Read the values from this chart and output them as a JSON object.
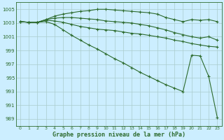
{
  "xlabel": "Graphe pression niveau de la mer (hPa)",
  "bg_color": "#cceeff",
  "grid_color": "#aacccc",
  "line_color": "#2d6b2d",
  "ylim": [
    988,
    1006
  ],
  "xlim": [
    -0.5,
    23.5
  ],
  "yticks": [
    989,
    991,
    993,
    995,
    997,
    999,
    1001,
    1003,
    1005
  ],
  "xticks": [
    0,
    1,
    2,
    3,
    4,
    5,
    6,
    7,
    8,
    9,
    10,
    11,
    12,
    13,
    14,
    15,
    16,
    17,
    18,
    19,
    20,
    21,
    22,
    23
  ],
  "series": [
    [
      1003.2,
      1003.1,
      1003.1,
      1003.5,
      1004.0,
      1004.3,
      1004.5,
      1004.7,
      1004.8,
      1005.0,
      1005.0,
      1004.9,
      1004.8,
      1004.7,
      1004.6,
      1004.5,
      1004.3,
      1003.8,
      1003.5,
      1003.2,
      1003.5,
      1003.4,
      1003.5,
      1003.2
    ],
    [
      1003.2,
      1003.1,
      1003.1,
      1003.5,
      1003.7,
      1003.8,
      1003.8,
      1003.7,
      1003.6,
      1003.5,
      1003.3,
      1003.2,
      1003.1,
      1003.0,
      1002.8,
      1002.6,
      1002.3,
      1002.0,
      1001.6,
      1001.3,
      1001.0,
      1000.8,
      1001.0,
      1000.5
    ],
    [
      1003.2,
      1003.1,
      1003.1,
      1003.4,
      1003.3,
      1003.1,
      1002.8,
      1002.5,
      1002.3,
      1002.1,
      1002.0,
      1001.9,
      1001.7,
      1001.5,
      1001.4,
      1001.2,
      1001.0,
      1000.8,
      1000.5,
      1000.3,
      1000.0,
      999.8,
      999.6,
      999.5
    ],
    [
      1003.2,
      1003.1,
      1003.1,
      1003.2,
      1002.8,
      1002.0,
      1001.2,
      1000.5,
      999.8,
      999.2,
      998.5,
      997.8,
      997.2,
      996.5,
      995.8,
      995.2,
      994.6,
      994.0,
      993.5,
      993.0,
      998.3,
      998.2,
      995.2,
      989.2
    ]
  ]
}
